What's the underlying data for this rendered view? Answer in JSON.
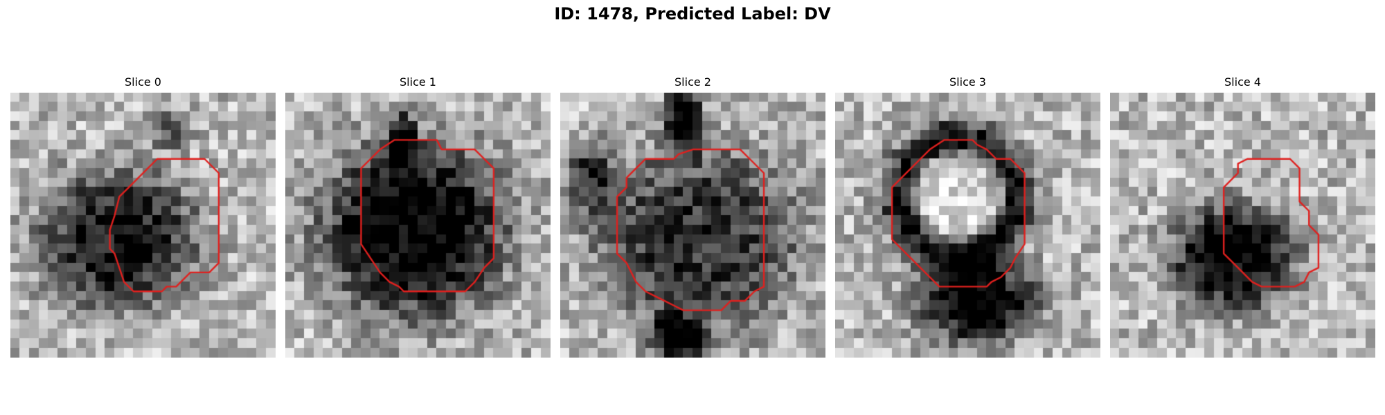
{
  "figure": {
    "title": "ID: 1478, Predicted Label: DV",
    "grid_cells": 28,
    "contour_color": "#e0201e"
  },
  "slices": [
    {
      "title": "Slice 0",
      "blob": {
        "center": [
          11.5,
          15.5
        ],
        "radius": [
          8,
          7
        ],
        "darkness": 0.68,
        "type": "dark"
      },
      "extra": [
        {
          "center": [
            17,
            4
          ],
          "radius": [
            2,
            2
          ],
          "darkness": 0.35,
          "type": "dark"
        }
      ],
      "contour": [
        [
          15.5,
          7
        ],
        [
          20.5,
          7
        ],
        [
          22,
          8.5
        ],
        [
          22,
          18
        ],
        [
          21,
          19
        ],
        [
          19,
          19
        ],
        [
          17.5,
          20.5
        ],
        [
          16.5,
          20.5
        ],
        [
          16,
          21
        ],
        [
          13,
          21
        ],
        [
          12,
          20
        ],
        [
          11.5,
          18.5
        ],
        [
          11,
          17
        ],
        [
          10.5,
          16.5
        ],
        [
          10.5,
          14.5
        ],
        [
          11,
          13
        ],
        [
          11.5,
          11
        ],
        [
          12.5,
          10
        ],
        [
          13.5,
          9
        ]
      ]
    },
    {
      "title": "Slice 1",
      "blob": {
        "center": [
          13.5,
          14.5
        ],
        "radius": [
          9.5,
          9
        ],
        "darkness": 0.8,
        "type": "dark"
      },
      "extra": [
        {
          "center": [
            12.5,
            5
          ],
          "radius": [
            1.5,
            3
          ],
          "darkness": 0.6,
          "type": "dark"
        }
      ],
      "contour": [
        [
          10,
          6
        ],
        [
          11.5,
          5
        ],
        [
          13,
          5
        ],
        [
          16,
          5
        ],
        [
          16.5,
          6
        ],
        [
          20,
          6
        ],
        [
          21,
          7
        ],
        [
          22,
          8
        ],
        [
          22,
          17.5
        ],
        [
          21,
          18.5
        ],
        [
          20,
          20
        ],
        [
          19,
          21
        ],
        [
          17,
          21
        ],
        [
          12.5,
          21
        ],
        [
          12,
          20.5
        ],
        [
          11,
          20
        ],
        [
          10,
          19
        ],
        [
          9,
          17.5
        ],
        [
          8,
          16
        ],
        [
          8,
          8
        ],
        [
          9,
          7
        ]
      ]
    },
    {
      "title": "Slice 2",
      "blob": {
        "center": [
          14.5,
          15.5
        ],
        "radius": [
          10.5,
          9.5
        ],
        "darkness": 0.55,
        "type": "dark"
      },
      "extra": [
        {
          "center": [
            13,
            3
          ],
          "radius": [
            2,
            3.5
          ],
          "darkness": 0.75,
          "type": "dark"
        },
        {
          "center": [
            12.5,
            26
          ],
          "radius": [
            3,
            2.5
          ],
          "darkness": 0.7,
          "type": "dark"
        },
        {
          "center": [
            3,
            9
          ],
          "radius": [
            2.5,
            4
          ],
          "darkness": 0.45,
          "type": "dark"
        }
      ],
      "contour": [
        [
          9,
          7
        ],
        [
          12,
          7
        ],
        [
          12.5,
          6.5
        ],
        [
          14,
          6
        ],
        [
          16,
          6
        ],
        [
          19,
          6
        ],
        [
          20,
          7
        ],
        [
          21.5,
          8.5
        ],
        [
          21.5,
          20.5
        ],
        [
          20.5,
          21
        ],
        [
          19.5,
          22
        ],
        [
          18,
          22
        ],
        [
          17,
          23
        ],
        [
          16,
          23
        ],
        [
          13,
          23
        ],
        [
          12,
          22.5
        ],
        [
          11,
          22
        ],
        [
          10,
          21.5
        ],
        [
          9,
          21
        ],
        [
          8,
          20
        ],
        [
          7,
          18
        ],
        [
          6,
          17
        ],
        [
          6,
          11
        ],
        [
          7,
          10
        ],
        [
          7,
          9
        ],
        [
          8,
          8
        ]
      ]
    },
    {
      "title": "Slice 3",
      "blob": {
        "center": [
          13,
          11
        ],
        "radius": [
          6,
          6
        ],
        "darkness": 0.0,
        "type": "ring"
      },
      "extra": [
        {
          "center": [
            15,
            22
          ],
          "radius": [
            6,
            4.5
          ],
          "darkness": 0.8,
          "type": "dark"
        },
        {
          "center": [
            13,
            11
          ],
          "radius": [
            6,
            6
          ],
          "darkness": 0.65,
          "type": "ring"
        }
      ],
      "contour": [
        [
          10,
          6
        ],
        [
          11.5,
          5
        ],
        [
          14.5,
          5
        ],
        [
          15,
          5.5
        ],
        [
          16,
          6
        ],
        [
          17,
          7
        ],
        [
          18.5,
          7
        ],
        [
          19.5,
          8
        ],
        [
          20,
          8.5
        ],
        [
          20,
          16
        ],
        [
          19,
          17.5
        ],
        [
          18.5,
          18.5
        ],
        [
          17.5,
          19.5
        ],
        [
          16.5,
          20
        ],
        [
          16,
          20.5
        ],
        [
          14.5,
          20.5
        ],
        [
          11,
          20.5
        ],
        [
          10,
          19.5
        ],
        [
          9,
          18.5
        ],
        [
          8,
          17.5
        ],
        [
          6,
          15.5
        ],
        [
          6,
          10
        ],
        [
          7,
          9
        ],
        [
          8,
          8
        ],
        [
          9,
          7
        ]
      ]
    },
    {
      "title": "Slice 4",
      "blob": {
        "center": [
          13,
          17.5
        ],
        "radius": [
          6.5,
          5.5
        ],
        "darkness": 0.75,
        "type": "dark"
      },
      "extra": [],
      "contour": [
        [
          13.5,
          8.5
        ],
        [
          13.5,
          7.5
        ],
        [
          14.5,
          7
        ],
        [
          19,
          7
        ],
        [
          20,
          8
        ],
        [
          20,
          11.5
        ],
        [
          21,
          12.5
        ],
        [
          21,
          14
        ],
        [
          22,
          15
        ],
        [
          22,
          18.5
        ],
        [
          21,
          19
        ],
        [
          20.5,
          20
        ],
        [
          19.5,
          20.5
        ],
        [
          16,
          20.5
        ],
        [
          15,
          20
        ],
        [
          14,
          19
        ],
        [
          13,
          18
        ],
        [
          12,
          17
        ],
        [
          12,
          10
        ],
        [
          13,
          9
        ]
      ]
    }
  ]
}
